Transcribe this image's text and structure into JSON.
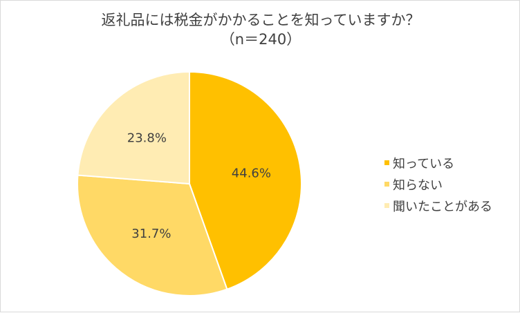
{
  "chart_data": {
    "type": "pie",
    "title_lines": [
      "返礼品には税金がかかることを知っていますか？",
      "（n＝240）"
    ],
    "categories": [
      "知っている",
      "知らない",
      "聞いたことがある"
    ],
    "values": [
      44.6,
      31.7,
      23.8
    ],
    "data_labels": [
      "44.6%",
      "31.7%",
      "23.8%"
    ],
    "colors": [
      "#ffc000",
      "#ffd966",
      "#ffecb3"
    ],
    "legend_position": "right"
  }
}
